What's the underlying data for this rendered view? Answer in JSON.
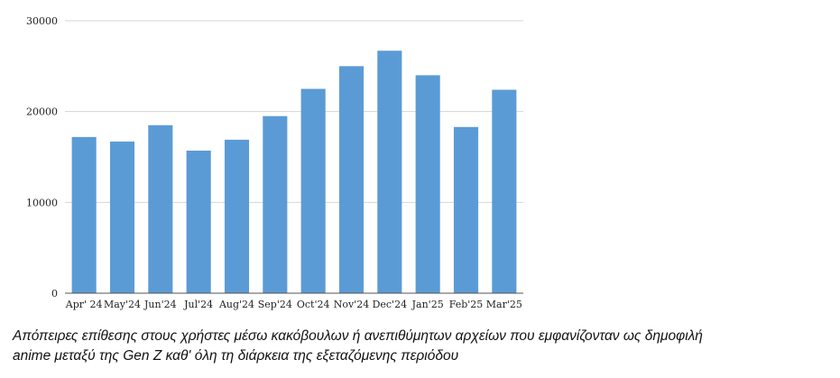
{
  "chart_data": {
    "type": "bar",
    "categories": [
      "Apr' 24",
      "May'24",
      "Jun'24",
      "Jul'24",
      "Aug'24",
      "Sep'24",
      "Oct'24",
      "Nov'24",
      "Dec'24",
      "Jan'25",
      "Feb'25",
      "Mar'25"
    ],
    "values": [
      17200,
      16700,
      18500,
      15700,
      16900,
      19500,
      22500,
      25000,
      26700,
      24000,
      18300,
      22400
    ],
    "ylim": [
      0,
      30000
    ],
    "yticks": [
      0,
      10000,
      20000,
      30000
    ],
    "grid": true,
    "legend": "none",
    "bar_color": "#5B9BD5"
  },
  "caption": {
    "line1": "Απόπειρες επίθεσης στους χρήστες μέσω κακόβουλων ή ανεπιθύμητων αρχείων που εμφανίζονταν ως δημοφιλή",
    "line2": "anime μεταξύ της Gen Z καθ' όλη τη διάρκεια της εξεταζόμενης περιόδου"
  }
}
